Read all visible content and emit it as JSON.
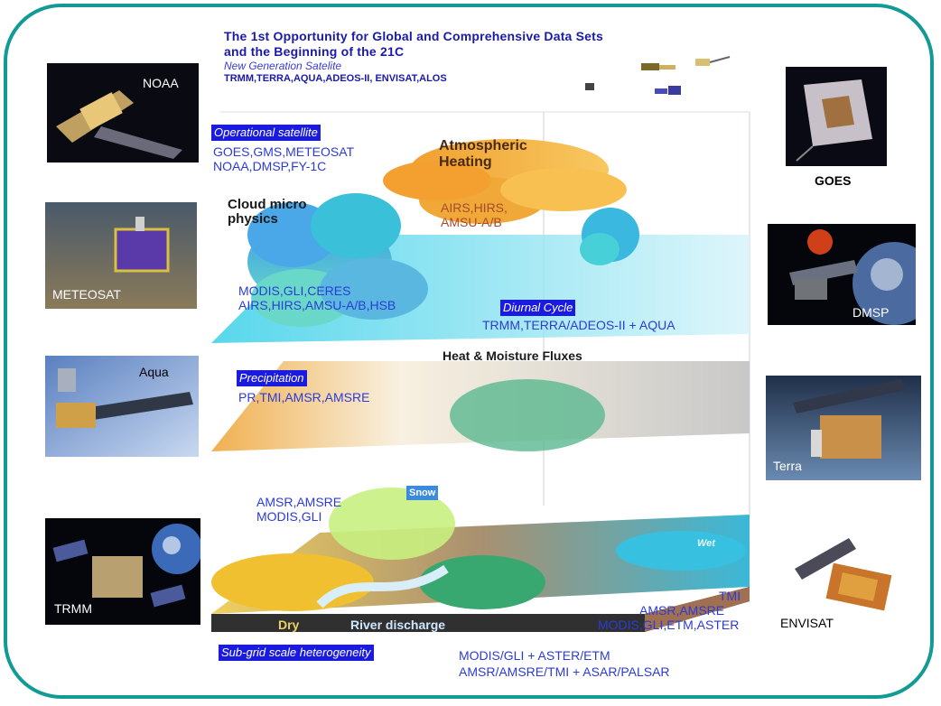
{
  "title": {
    "line1": "The 1st Opportunity for Global and Comprehensive Data Sets",
    "line2": "and the Beginning of the 21C",
    "subtitle": "New Generation Satelite",
    "satellites": "TRMM,TERRA,AQUA,ADEOS-II, ENVISAT,ALOS"
  },
  "left_photos": [
    {
      "label": "NOAA"
    },
    {
      "label": "METEOSAT"
    },
    {
      "label": "Aqua"
    },
    {
      "label": "TRMM"
    }
  ],
  "right_photos": [
    {
      "label": "GOES"
    },
    {
      "label": "DMSP"
    },
    {
      "label": "Terra"
    },
    {
      "label": "ENVISAT"
    }
  ],
  "diagram": {
    "operational_label": "Operational satellite",
    "operational_line1": "GOES,GMS,METEOSAT",
    "operational_line2": "NOAA,DMSP,FY-1C",
    "atm_heating_line1": "Atmospheric",
    "atm_heating_line2": "Heating",
    "cloud_line1": "Cloud micro",
    "cloud_line2": "physics",
    "airs_line1": "AIRS,HIRS,",
    "airs_line2": "AMSU-A/B",
    "modis_line1": "MODIS,GLI,CERES",
    "modis_line2": "AIRS,HIRS,AMSU-A/B,HSB",
    "diurnal_label": "Diurnal Cycle",
    "diurnal_text": "TRMM,TERRA/ADEOS-II + AQUA",
    "heat_flux": "Heat & Moisture Fluxes",
    "precip_label": "Precipitation",
    "precip_text": "PR,TMI,AMSR,AMSRE",
    "snow_label": "Snow",
    "amsr_line1": "AMSR,AMSRE",
    "amsr_line2": "MODIS,GLI",
    "wet_label": "Wet",
    "dry_label": "Dry",
    "river_label": "River discharge",
    "tmi_line1": "TMI",
    "tmi_line2": "AMSR,AMSRE",
    "tmi_line3": "MODIS,GLI,ETM,ASTER",
    "subgrid_label": "Sub-grid scale heterogeneity",
    "subgrid_line1": "MODIS/GLI + ASTER/ETM",
    "subgrid_line2": "AMSR/AMSRE/TMI + ASAR/PALSAR"
  },
  "colors": {
    "frame": "#129a94",
    "title_blue": "#1a1aa8",
    "label_box": "#1b1be0",
    "text_blue": "#2b3bd8"
  }
}
